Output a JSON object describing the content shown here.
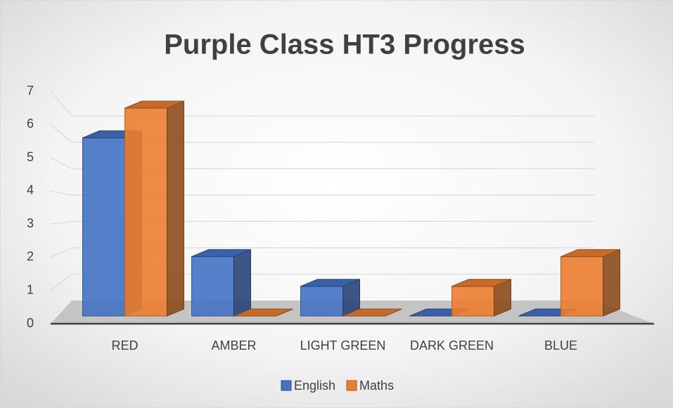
{
  "chart_data": {
    "type": "bar3d",
    "title": "Purple Class HT3 Progress",
    "categories": [
      "RED",
      "AMBER",
      "LIGHT GREEN",
      "DARK GREEN",
      "BLUE"
    ],
    "series": [
      {
        "name": "English",
        "color": "#4472c4",
        "values": [
          6,
          2,
          1,
          0,
          0
        ]
      },
      {
        "name": "Maths",
        "color": "#ed7d31",
        "values": [
          7,
          0,
          0,
          1,
          2
        ]
      }
    ],
    "ylim": [
      0,
      7
    ],
    "yticks": [
      0,
      1,
      2,
      3,
      4,
      5,
      6,
      7
    ],
    "grid": true,
    "legend": "bottom"
  }
}
